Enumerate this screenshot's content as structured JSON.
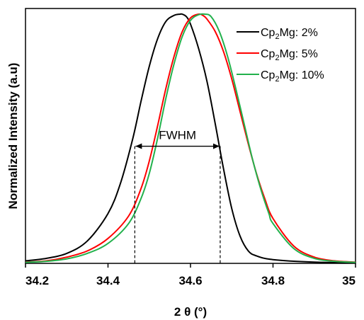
{
  "chart_data": {
    "type": "line",
    "title": "",
    "xlabel": "2 θ (°)",
    "ylabel": "Normalized Intensity (a.u)",
    "xlim": [
      34.2,
      35
    ],
    "ylim": [
      0,
      1
    ],
    "xticks": [
      "34.2",
      "34.4",
      "34.6",
      "34.8",
      "35"
    ],
    "grid": false,
    "legend_position": "top-right",
    "series": [
      {
        "name_base": "Cp",
        "name_sub": "2",
        "name_rest": "Mg: 2%",
        "color": "#000000",
        "x": [
          34.2,
          34.25,
          34.3,
          34.35,
          34.4,
          34.43,
          34.46,
          34.48,
          34.5,
          34.52,
          34.54,
          34.56,
          34.575,
          34.58,
          34.59,
          34.6,
          34.62,
          34.64,
          34.66,
          34.68,
          34.7,
          34.72,
          34.74,
          34.76,
          34.8,
          34.9,
          35.0
        ],
        "y": [
          0.01,
          0.02,
          0.04,
          0.09,
          0.2,
          0.32,
          0.5,
          0.65,
          0.79,
          0.9,
          0.97,
          0.995,
          1.0,
          1.0,
          0.99,
          0.96,
          0.86,
          0.73,
          0.56,
          0.38,
          0.22,
          0.11,
          0.05,
          0.03,
          0.015,
          0.005,
          0.003
        ]
      },
      {
        "name_base": "Cp",
        "name_sub": "2",
        "name_rest": "Mg: 5%",
        "color": "#ff0000",
        "x": [
          34.2,
          34.25,
          34.3,
          34.35,
          34.4,
          34.45,
          34.48,
          34.5,
          34.52,
          34.54,
          34.56,
          34.58,
          34.6,
          34.62,
          34.63,
          34.64,
          34.66,
          34.68,
          34.7,
          34.72,
          34.74,
          34.76,
          34.78,
          34.8,
          34.85,
          34.9,
          34.95,
          35.0
        ],
        "y": [
          0.005,
          0.01,
          0.025,
          0.05,
          0.1,
          0.19,
          0.3,
          0.41,
          0.55,
          0.7,
          0.83,
          0.93,
          0.985,
          1.0,
          0.995,
          0.98,
          0.93,
          0.85,
          0.74,
          0.61,
          0.48,
          0.36,
          0.26,
          0.18,
          0.07,
          0.025,
          0.01,
          0.005
        ]
      },
      {
        "name_base": "Cp",
        "name_sub": "2",
        "name_rest": "Mg: 10%",
        "color": "#22b14c",
        "x": [
          34.2,
          34.25,
          34.3,
          34.35,
          34.4,
          34.45,
          34.48,
          34.5,
          34.52,
          34.54,
          34.56,
          34.58,
          34.6,
          34.62,
          34.635,
          34.65,
          34.67,
          34.69,
          34.71,
          34.73,
          34.75,
          34.77,
          34.79,
          34.8,
          34.85,
          34.9,
          34.95,
          35.0
        ],
        "y": [
          0.004,
          0.008,
          0.018,
          0.04,
          0.08,
          0.16,
          0.26,
          0.36,
          0.5,
          0.66,
          0.8,
          0.91,
          0.975,
          0.998,
          1.0,
          0.99,
          0.93,
          0.83,
          0.7,
          0.56,
          0.42,
          0.3,
          0.2,
          0.16,
          0.06,
          0.02,
          0.008,
          0.004
        ]
      }
    ],
    "annotations": [
      {
        "text": "FWHM",
        "x_start": 34.465,
        "x_end": 34.672,
        "y": 0.47
      }
    ]
  }
}
